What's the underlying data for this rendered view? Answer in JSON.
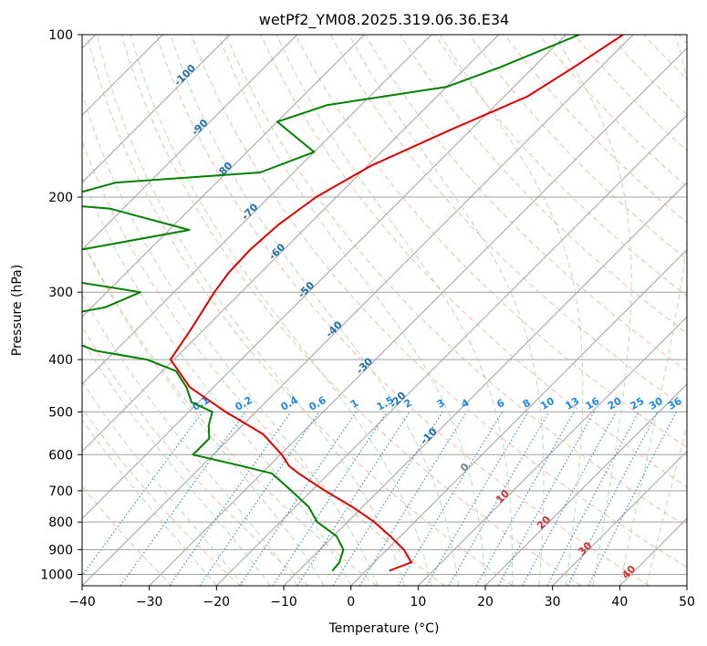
{
  "chart_data": {
    "type": "line",
    "title": "wetPf2_YM08.2025.319.06.36.E34",
    "xlabel": "Temperature (°C)",
    "ylabel": "Pressure (hPa)",
    "xlim": [
      -40,
      50
    ],
    "ylim": [
      1050,
      100
    ],
    "y_scale": "log",
    "grid": true,
    "x_ticks": [
      "−40",
      "−30",
      "−20",
      "−10",
      "0",
      "10",
      "20",
      "30",
      "40",
      "50"
    ],
    "x_tick_values": [
      -40,
      -30,
      -20,
      -10,
      0,
      10,
      20,
      30,
      40,
      50
    ],
    "y_ticks": [
      "100",
      "200",
      "300",
      "400",
      "500",
      "600",
      "700",
      "800",
      "900",
      "1000"
    ],
    "y_tick_values": [
      100,
      200,
      300,
      400,
      500,
      600,
      700,
      800,
      900,
      1000
    ],
    "colors": {
      "temperature": "#e00000",
      "dewpoint": "#008000",
      "isotherm": "#a0a0a0",
      "dry_adiabat": "#f4a582",
      "moist_adiabat": "#a6d9a6",
      "mixing_ratio": "#1e88e5",
      "isotherm_label": "#1f6fb0",
      "mixing_label": "#1e88e5",
      "adiabat_label": "#d03030"
    },
    "series": [
      {
        "key": "temperature",
        "points": [
          [
            100,
            -41.5
          ],
          [
            115,
            -44.0
          ],
          [
            130,
            -46.5
          ],
          [
            150,
            -53.0
          ],
          [
            175,
            -59.5
          ],
          [
            200,
            -63.0
          ],
          [
            225,
            -64.5
          ],
          [
            250,
            -65.0
          ],
          [
            275,
            -64.8
          ],
          [
            300,
            -64.0
          ],
          [
            350,
            -62.0
          ],
          [
            400,
            -60.5
          ],
          [
            450,
            -53.5
          ],
          [
            500,
            -44.5
          ],
          [
            550,
            -35.6
          ],
          [
            600,
            -29.8
          ],
          [
            630,
            -27.0
          ],
          [
            650,
            -24.5
          ],
          [
            700,
            -18.0
          ],
          [
            750,
            -11.5
          ],
          [
            800,
            -6.0
          ],
          [
            850,
            -1.5
          ],
          [
            900,
            2.5
          ],
          [
            950,
            5.5
          ],
          [
            975,
            4.0
          ],
          [
            985,
            3.5
          ]
        ]
      },
      {
        "key": "dewpoint",
        "points": [
          [
            100,
            -48.0
          ],
          [
            115,
            -55.0
          ],
          [
            125,
            -60.0
          ],
          [
            135,
            -75.0
          ],
          [
            145,
            -80.0
          ],
          [
            165,
            -70.0
          ],
          [
            180,
            -75.0
          ],
          [
            188,
            -95.0
          ],
          [
            205,
            -103.0
          ],
          [
            210,
            -92.0
          ],
          [
            230,
            -77.0
          ],
          [
            250,
            -90.0
          ],
          [
            262,
            -108.0
          ],
          [
            275,
            -108.0
          ],
          [
            285,
            -88.0
          ],
          [
            300,
            -75.0
          ],
          [
            320,
            -78.0
          ],
          [
            335,
            -85.0
          ],
          [
            350,
            -80.0
          ],
          [
            370,
            -78.0
          ],
          [
            385,
            -73.0
          ],
          [
            400,
            -64.0
          ],
          [
            420,
            -58.0
          ],
          [
            450,
            -54.0
          ],
          [
            480,
            -51.0
          ],
          [
            500,
            -46.5
          ],
          [
            530,
            -45.0
          ],
          [
            560,
            -43.0
          ],
          [
            600,
            -43.0
          ],
          [
            630,
            -34.0
          ],
          [
            650,
            -28.5
          ],
          [
            700,
            -23.0
          ],
          [
            750,
            -18.0
          ],
          [
            800,
            -14.5
          ],
          [
            850,
            -9.5
          ],
          [
            900,
            -6.5
          ],
          [
            950,
            -5.2
          ],
          [
            985,
            -5.0
          ]
        ]
      }
    ],
    "isotherm_labels": [
      {
        "text": "-100",
        "t": -100,
        "p": 120
      },
      {
        "text": "-90",
        "t": -90,
        "p": 150
      },
      {
        "text": "-80",
        "t": -80,
        "p": 180
      },
      {
        "text": "-70",
        "t": -70,
        "p": 215
      },
      {
        "text": "-60",
        "t": -60,
        "p": 255
      },
      {
        "text": "-50",
        "t": -50,
        "p": 300
      },
      {
        "text": "-40",
        "t": -40,
        "p": 355
      },
      {
        "text": "-30",
        "t": -30,
        "p": 415
      },
      {
        "text": "-20",
        "t": -20,
        "p": 480
      },
      {
        "text": "-10",
        "t": -10,
        "p": 560
      },
      {
        "text": "0",
        "t": 0,
        "p": 640
      },
      {
        "text": "10",
        "t": 10,
        "p": 725
      },
      {
        "text": "20",
        "t": 20,
        "p": 810
      },
      {
        "text": "30",
        "t": 30,
        "p": 905
      },
      {
        "text": "40",
        "t": 40,
        "p": 1000
      }
    ],
    "mixing_ratio_labels": [
      "0.1",
      "0.2",
      "0.4",
      "0.6",
      "1",
      "1.5",
      "2",
      "3",
      "4",
      "6",
      "8",
      "10",
      "13",
      "16",
      "20",
      "25",
      "30",
      "36"
    ],
    "mixing_ratio_values": [
      0.1,
      0.2,
      0.4,
      0.6,
      1,
      1.5,
      2,
      3,
      4,
      6,
      8,
      10,
      13,
      16,
      20,
      25,
      30,
      36
    ]
  }
}
